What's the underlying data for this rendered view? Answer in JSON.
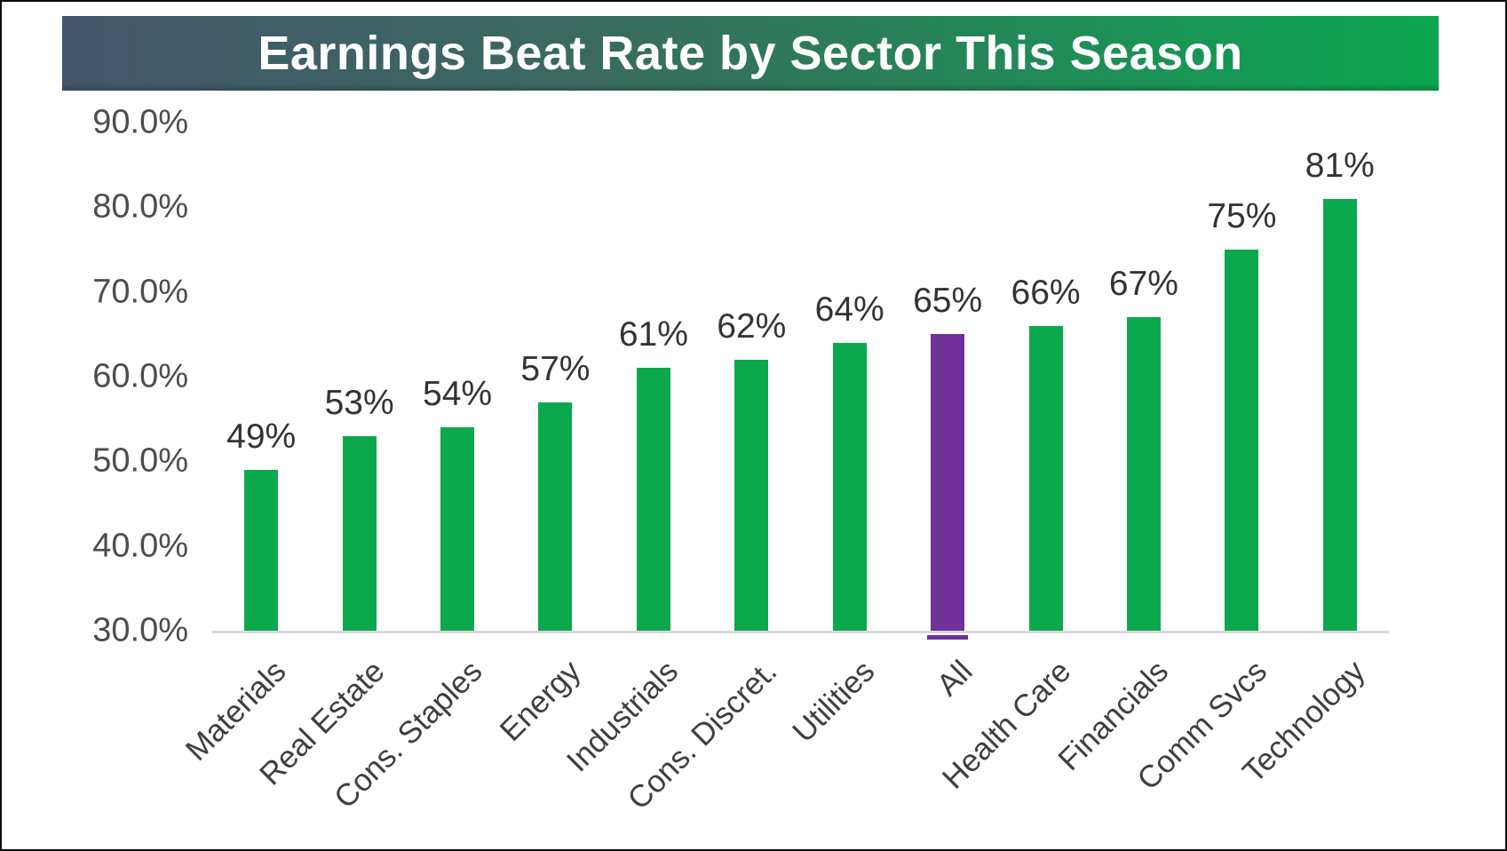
{
  "banner": {
    "title": "Earnings Beat Rate by Sector This Season"
  },
  "colors": {
    "banner_left": "#44566B",
    "banner_right": "#0BA750",
    "bar": "#0CA84E",
    "bar_highlight": "#6F3198",
    "axis_line": "#D9D9D9",
    "tick_text": "#4D4D4D",
    "value_text": "#333333",
    "category_text": "#3F3F3F"
  },
  "chart_data": {
    "type": "bar",
    "title": "Earnings Beat Rate by Sector This Season",
    "categories": [
      "Materials",
      "Real Estate",
      "Cons. Staples",
      "Energy",
      "Industrials",
      "Cons. Discret.",
      "Utilities",
      "All",
      "Health Care",
      "Financials",
      "Comm Svcs",
      "Technology"
    ],
    "values": [
      49,
      53,
      54,
      57,
      61,
      62,
      64,
      65,
      66,
      67,
      75,
      81
    ],
    "value_labels": [
      "49%",
      "53%",
      "54%",
      "57%",
      "61%",
      "62%",
      "64%",
      "65%",
      "66%",
      "67%",
      "75%",
      "81%"
    ],
    "highlight_category": "All",
    "y_ticks": [
      "90.0%",
      "80.0%",
      "70.0%",
      "60.0%",
      "50.0%",
      "40.0%",
      "30.0%"
    ],
    "ylim": [
      30,
      90
    ],
    "xlabel": "",
    "ylabel": "",
    "grid": false,
    "legend": false
  }
}
